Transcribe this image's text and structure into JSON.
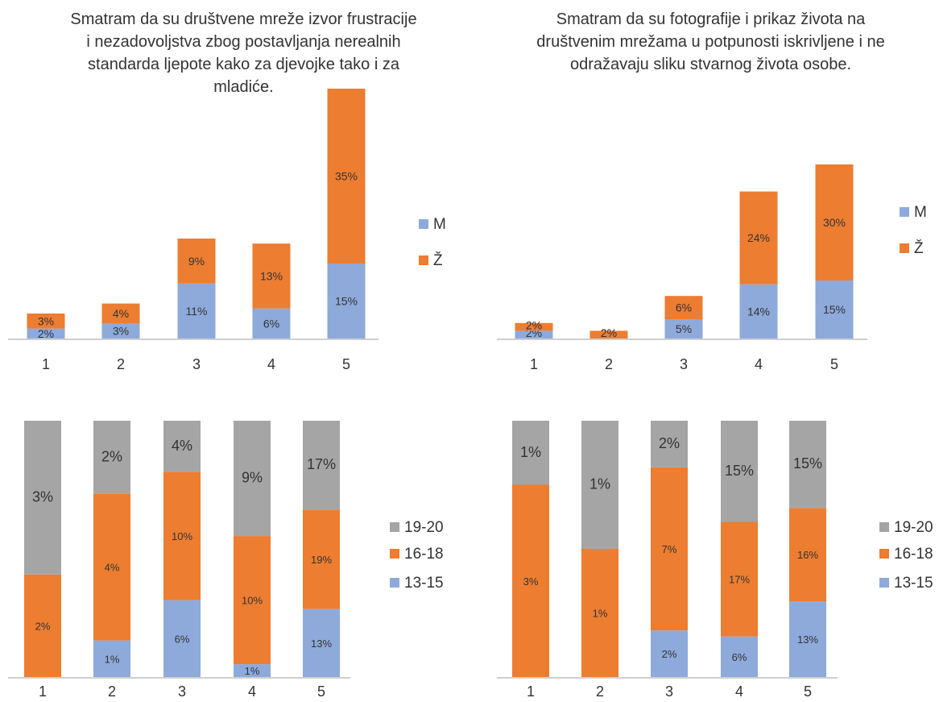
{
  "colors": {
    "M": "#8eaadb",
    "Z": "#ed7d31",
    "a1315": "#8eaadb",
    "a1618": "#ed7d31",
    "a1920": "#a5a5a5",
    "axis": "#bfbfbf"
  },
  "chart_data": [
    {
      "type": "bar",
      "stacked": true,
      "title": "Smatram da su društvene mreže izvor frustracije i nezadovoljstva zbog postavljanja nerealnih standarda ljepote kako za djevojke tako i za mladiće.",
      "categories": [
        "1",
        "2",
        "3",
        "4",
        "5"
      ],
      "series": [
        {
          "name": "M",
          "values": [
            2,
            3,
            11,
            6,
            15
          ],
          "labels": [
            "2%",
            "3%",
            "11%",
            "6%",
            "15%"
          ]
        },
        {
          "name": "Ž",
          "values": [
            3,
            4,
            9,
            13,
            35
          ],
          "labels": [
            "3%",
            "4%",
            "9%",
            "13%",
            "35%"
          ]
        }
      ],
      "legend": "right"
    },
    {
      "type": "bar",
      "stacked": true,
      "title": "Smatram da su fotografije i prikaz života na društvenim mrežama u potpunosti iskrivljene i ne odražavaju sliku stvarnog života osobe.",
      "categories": [
        "1",
        "2",
        "3",
        "4",
        "5"
      ],
      "series": [
        {
          "name": "M",
          "values": [
            2,
            0,
            5,
            14,
            15
          ],
          "labels": [
            "2%",
            "0%",
            "5%",
            "14%",
            "15%"
          ]
        },
        {
          "name": "Ž",
          "values": [
            2,
            2,
            6,
            24,
            30
          ],
          "labels": [
            "2%",
            "2%",
            "6%",
            "24%",
            "30%"
          ]
        }
      ],
      "legend": "right"
    },
    {
      "type": "bar",
      "stacked": true,
      "normalized": true,
      "categories": [
        "1",
        "2",
        "3",
        "4",
        "5"
      ],
      "series": [
        {
          "name": "13-15",
          "values": [
            0,
            1,
            6,
            1,
            13
          ],
          "labels": [
            "0%",
            "1%",
            "6%",
            "1%",
            "13%"
          ]
        },
        {
          "name": "16-18",
          "values": [
            2,
            4,
            10,
            10,
            19
          ],
          "labels": [
            "2%",
            "4%",
            "10%",
            "10%",
            "19%"
          ]
        },
        {
          "name": "19-20",
          "values": [
            3,
            2,
            4,
            9,
            17
          ],
          "labels": [
            "3%",
            "2%",
            "4%",
            "9%",
            "17%"
          ]
        }
      ],
      "legend": "right"
    },
    {
      "type": "bar",
      "stacked": true,
      "normalized": true,
      "categories": [
        "1",
        "2",
        "3",
        "4",
        "5"
      ],
      "series": [
        {
          "name": "13-15",
          "values": [
            0,
            0,
            2,
            6,
            13
          ],
          "labels": [
            "0%",
            "0%",
            "2%",
            "6%",
            "13%"
          ]
        },
        {
          "name": "16-18",
          "values": [
            3,
            1,
            7,
            17,
            16
          ],
          "labels": [
            "3%",
            "1%",
            "7%",
            "17%",
            "16%"
          ]
        },
        {
          "name": "19-20",
          "values": [
            1,
            1,
            2,
            15,
            15
          ],
          "labels": [
            "1%",
            "1%",
            "2%",
            "15%",
            "15%"
          ]
        }
      ],
      "legend": "right"
    }
  ]
}
